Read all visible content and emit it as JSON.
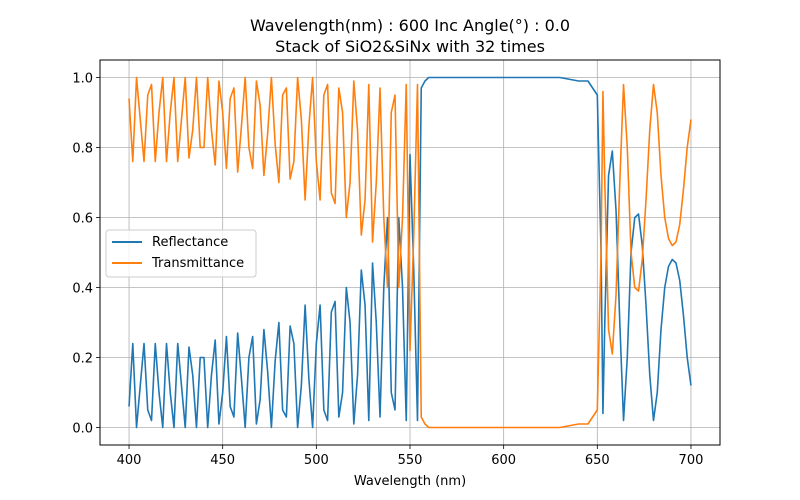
{
  "chart_data": {
    "type": "line",
    "title": "Wavelength(nm) : 600   Inc Angle(°) : 0.0",
    "subtitle": "Stack of SiO2&SiNx with 32 times",
    "xlabel": "Wavelength (nm)",
    "ylabel": "",
    "xlim": [
      384.5,
      715.5
    ],
    "ylim": [
      -0.05,
      1.05
    ],
    "xticks": [
      400,
      450,
      500,
      550,
      600,
      650,
      700
    ],
    "yticks": [
      0.0,
      0.2,
      0.4,
      0.6,
      0.8,
      1.0
    ],
    "xtick_labels": [
      "400",
      "450",
      "500",
      "550",
      "600",
      "650",
      "700"
    ],
    "ytick_labels": [
      "0.0",
      "0.2",
      "0.4",
      "0.6",
      "0.8",
      "1.0"
    ],
    "grid": true,
    "legend_position": "center-left",
    "series": [
      {
        "name": "Reflectance",
        "color": "#1f77b4",
        "x": [
          400,
          402,
          404,
          406,
          408,
          410,
          412,
          414,
          416,
          418,
          420,
          422,
          424,
          426,
          428,
          430,
          432,
          434,
          436,
          438,
          440,
          442,
          444,
          446,
          448,
          450,
          452,
          454,
          456,
          458,
          460,
          462,
          464,
          466,
          468,
          470,
          472,
          474,
          476,
          478,
          480,
          482,
          484,
          486,
          488,
          490,
          492,
          494,
          496,
          498,
          500,
          502,
          504,
          506,
          508,
          510,
          512,
          514,
          516,
          518,
          520,
          522,
          524,
          526,
          528,
          530,
          532,
          534,
          536,
          538,
          540,
          542,
          544,
          546,
          548,
          550,
          552,
          554,
          556,
          558,
          560,
          570,
          580,
          590,
          600,
          610,
          620,
          630,
          640,
          645,
          650,
          652,
          653,
          654,
          656,
          658,
          660,
          662,
          664,
          666,
          668,
          670,
          672,
          674,
          676,
          678,
          680,
          682,
          684,
          686,
          688,
          690,
          692,
          694,
          696,
          698,
          700
        ],
        "values": [
          0.06,
          0.24,
          0.0,
          0.12,
          0.24,
          0.05,
          0.02,
          0.24,
          0.1,
          0.0,
          0.24,
          0.1,
          0.0,
          0.24,
          0.12,
          0.0,
          0.23,
          0.15,
          0.0,
          0.2,
          0.2,
          0.0,
          0.15,
          0.25,
          0.01,
          0.1,
          0.26,
          0.06,
          0.03,
          0.27,
          0.14,
          0.0,
          0.2,
          0.26,
          0.01,
          0.08,
          0.28,
          0.16,
          0.0,
          0.19,
          0.3,
          0.05,
          0.03,
          0.29,
          0.24,
          0.0,
          0.12,
          0.35,
          0.14,
          0.0,
          0.24,
          0.35,
          0.05,
          0.02,
          0.33,
          0.36,
          0.03,
          0.1,
          0.4,
          0.3,
          0.01,
          0.15,
          0.45,
          0.35,
          0.02,
          0.47,
          0.3,
          0.03,
          0.4,
          0.6,
          0.1,
          0.05,
          0.6,
          0.4,
          0.02,
          0.78,
          0.45,
          0.02,
          0.97,
          0.99,
          1.0,
          1.0,
          1.0,
          1.0,
          1.0,
          1.0,
          1.0,
          1.0,
          0.99,
          0.99,
          0.95,
          0.5,
          0.04,
          0.3,
          0.72,
          0.79,
          0.62,
          0.3,
          0.02,
          0.2,
          0.5,
          0.6,
          0.61,
          0.52,
          0.35,
          0.15,
          0.02,
          0.1,
          0.28,
          0.4,
          0.46,
          0.48,
          0.47,
          0.42,
          0.32,
          0.2,
          0.12
        ]
      },
      {
        "name": "Transmittance",
        "color": "#ff7f0e",
        "x": [
          400,
          402,
          404,
          406,
          408,
          410,
          412,
          414,
          416,
          418,
          420,
          422,
          424,
          426,
          428,
          430,
          432,
          434,
          436,
          438,
          440,
          442,
          444,
          446,
          448,
          450,
          452,
          454,
          456,
          458,
          460,
          462,
          464,
          466,
          468,
          470,
          472,
          474,
          476,
          478,
          480,
          482,
          484,
          486,
          488,
          490,
          492,
          494,
          496,
          498,
          500,
          502,
          504,
          506,
          508,
          510,
          512,
          514,
          516,
          518,
          520,
          522,
          524,
          526,
          528,
          530,
          532,
          534,
          536,
          538,
          540,
          542,
          544,
          546,
          548,
          550,
          552,
          554,
          556,
          558,
          560,
          570,
          580,
          590,
          600,
          610,
          620,
          630,
          640,
          645,
          650,
          652,
          653,
          654,
          656,
          658,
          660,
          662,
          664,
          666,
          668,
          670,
          672,
          674,
          676,
          678,
          680,
          682,
          684,
          686,
          688,
          690,
          692,
          694,
          696,
          698,
          700
        ],
        "values": [
          0.94,
          0.76,
          1.0,
          0.88,
          0.76,
          0.95,
          0.98,
          0.76,
          0.9,
          1.0,
          0.76,
          0.9,
          1.0,
          0.76,
          0.88,
          1.0,
          0.77,
          0.85,
          1.0,
          0.8,
          0.8,
          1.0,
          0.85,
          0.75,
          0.99,
          0.9,
          0.74,
          0.94,
          0.97,
          0.73,
          0.86,
          1.0,
          0.8,
          0.74,
          0.99,
          0.92,
          0.72,
          0.84,
          1.0,
          0.81,
          0.7,
          0.95,
          0.97,
          0.71,
          0.76,
          1.0,
          0.88,
          0.65,
          0.86,
          1.0,
          0.76,
          0.65,
          0.95,
          0.98,
          0.67,
          0.64,
          0.97,
          0.9,
          0.6,
          0.7,
          0.99,
          0.85,
          0.55,
          0.65,
          0.98,
          0.53,
          0.7,
          0.97,
          0.6,
          0.4,
          0.9,
          0.95,
          0.4,
          0.6,
          0.98,
          0.22,
          0.55,
          0.98,
          0.03,
          0.01,
          0.0,
          0.0,
          0.0,
          0.0,
          0.0,
          0.0,
          0.0,
          0.0,
          0.01,
          0.01,
          0.05,
          0.5,
          0.96,
          0.7,
          0.28,
          0.21,
          0.38,
          0.7,
          0.98,
          0.8,
          0.5,
          0.4,
          0.39,
          0.48,
          0.65,
          0.85,
          0.98,
          0.9,
          0.72,
          0.6,
          0.54,
          0.52,
          0.53,
          0.58,
          0.68,
          0.8,
          0.88
        ]
      }
    ]
  }
}
